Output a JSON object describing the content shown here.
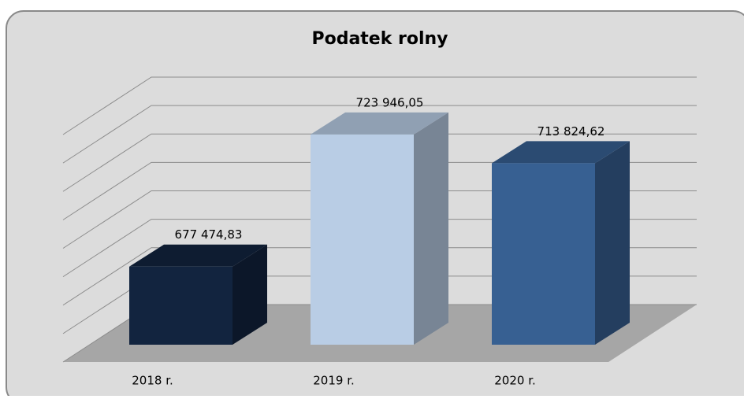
{
  "chart_data": {
    "type": "bar",
    "title": "Podatek rolny",
    "categories": [
      "2018 r.",
      "2019 r.",
      "2020 r."
    ],
    "values": [
      677474.83,
      723946.05,
      713824.62
    ],
    "value_labels": [
      "677 474,83",
      "723 946,05",
      "713 824,62"
    ],
    "colors": [
      "#12243f",
      "#b9cde5",
      "#376092"
    ],
    "ylim": [
      650000,
      730000
    ],
    "yticks": [
      650000,
      660000,
      670000,
      680000,
      690000,
      700000,
      710000,
      720000,
      730000
    ],
    "grid": true
  }
}
